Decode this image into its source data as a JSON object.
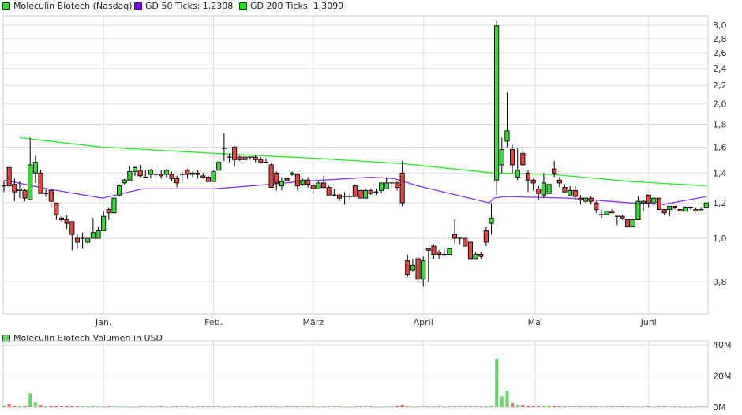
{
  "legend": {
    "price": "Moleculin Biotech (Nasdaq)",
    "gd50": "GD 50 Ticks: 1,2308",
    "gd200": "GD 200 Ticks: 1,3099",
    "volume": "Moleculin Biotech Volumen in USD"
  },
  "colors": {
    "up": "#33dd33",
    "down": "#e84444",
    "gd50": "#8c30ff",
    "gd200": "#22ee22",
    "vol_up": "#66d866",
    "vol_down": "#e06a6a",
    "grid": "#dddddd"
  },
  "chart_data": [
    {
      "type": "candlestick",
      "yscale": "log",
      "ylim": [
        0.7,
        3.15
      ],
      "yticks": [
        {
          "v": 0.8,
          "label": "0,8"
        },
        {
          "v": 1.0,
          "label": "1,0"
        },
        {
          "v": 1.2,
          "label": "1,2"
        },
        {
          "v": 1.4,
          "label": "1,4"
        },
        {
          "v": 1.6,
          "label": "1,6"
        },
        {
          "v": 1.8,
          "label": "1,8"
        },
        {
          "v": 2.0,
          "label": "2,0"
        },
        {
          "v": 2.2,
          "label": "2,2"
        },
        {
          "v": 2.4,
          "label": "2,4"
        },
        {
          "v": 2.6,
          "label": "2,6"
        },
        {
          "v": 2.8,
          "label": "2,8"
        },
        {
          "v": 3.0,
          "label": "3,0"
        }
      ],
      "month_ticks": [
        {
          "label": "Jan.",
          "index": 19
        },
        {
          "label": "Feb.",
          "index": 40
        },
        {
          "label": "März",
          "index": 59
        },
        {
          "label": "April",
          "index": 80
        },
        {
          "label": "Mai",
          "index": 101.4
        },
        {
          "label": "Juni",
          "index": 123
        }
      ],
      "grid": true,
      "ohlc_order": [
        "open",
        "high",
        "low",
        "close"
      ],
      "ohlc": [
        [
          1.31,
          1.34,
          1.27,
          1.31
        ],
        [
          1.44,
          1.46,
          1.27,
          1.31
        ],
        [
          1.32,
          1.36,
          1.21,
          1.27
        ],
        [
          1.28,
          1.34,
          1.23,
          1.29
        ],
        [
          1.28,
          1.29,
          1.21,
          1.23
        ],
        [
          1.22,
          1.68,
          1.22,
          1.46
        ],
        [
          1.4,
          1.53,
          1.33,
          1.48
        ],
        [
          1.4,
          1.42,
          1.26,
          1.26
        ],
        [
          1.26,
          1.29,
          1.24,
          1.26
        ],
        [
          1.28,
          1.28,
          1.17,
          1.21
        ],
        [
          1.2,
          1.2,
          1.1,
          1.13
        ],
        [
          1.11,
          1.12,
          1.09,
          1.1
        ],
        [
          1.1,
          1.13,
          1.05,
          1.08
        ],
        [
          1.09,
          1.09,
          0.94,
          1.02
        ],
        [
          1.0,
          1.02,
          0.95,
          0.98
        ],
        [
          1.0,
          1.03,
          0.95,
          1.0
        ],
        [
          0.98,
          1.0,
          0.97,
          1.0
        ],
        [
          1.0,
          1.11,
          1.0,
          1.03
        ],
        [
          1.0,
          1.06,
          1.0,
          1.04
        ],
        [
          1.04,
          1.15,
          1.04,
          1.12
        ],
        [
          1.16,
          1.17,
          1.1,
          1.14
        ],
        [
          1.14,
          1.34,
          1.14,
          1.23
        ],
        [
          1.25,
          1.32,
          1.24,
          1.31
        ],
        [
          1.33,
          1.36,
          1.32,
          1.35
        ],
        [
          1.35,
          1.45,
          1.35,
          1.41
        ],
        [
          1.41,
          1.45,
          1.38,
          1.44
        ],
        [
          1.42,
          1.46,
          1.37,
          1.38
        ],
        [
          1.37,
          1.42,
          1.37,
          1.37
        ],
        [
          1.39,
          1.43,
          1.36,
          1.42
        ],
        [
          1.39,
          1.43,
          1.37,
          1.39
        ],
        [
          1.39,
          1.42,
          1.36,
          1.38
        ],
        [
          1.39,
          1.43,
          1.37,
          1.42
        ],
        [
          1.39,
          1.41,
          1.34,
          1.36
        ],
        [
          1.36,
          1.38,
          1.3,
          1.33
        ],
        [
          1.39,
          1.41,
          1.33,
          1.39
        ],
        [
          1.42,
          1.43,
          1.36,
          1.39
        ],
        [
          1.39,
          1.41,
          1.37,
          1.4
        ],
        [
          1.4,
          1.42,
          1.36,
          1.39
        ],
        [
          1.38,
          1.4,
          1.36,
          1.37
        ],
        [
          1.37,
          1.38,
          1.34,
          1.34
        ],
        [
          1.34,
          1.42,
          1.34,
          1.41
        ],
        [
          1.42,
          1.49,
          1.42,
          1.48
        ],
        [
          1.59,
          1.72,
          1.49,
          1.59
        ],
        [
          1.52,
          1.55,
          1.48,
          1.52
        ],
        [
          1.6,
          1.61,
          1.45,
          1.5
        ],
        [
          1.52,
          1.53,
          1.49,
          1.5
        ],
        [
          1.52,
          1.53,
          1.48,
          1.5
        ],
        [
          1.52,
          1.52,
          1.5,
          1.52
        ],
        [
          1.52,
          1.54,
          1.48,
          1.5
        ],
        [
          1.5,
          1.52,
          1.47,
          1.48
        ],
        [
          1.48,
          1.51,
          1.48,
          1.48
        ],
        [
          1.46,
          1.47,
          1.3,
          1.3
        ],
        [
          1.4,
          1.41,
          1.28,
          1.33
        ],
        [
          1.31,
          1.37,
          1.28,
          1.34
        ],
        [
          1.36,
          1.38,
          1.34,
          1.35
        ],
        [
          1.39,
          1.41,
          1.38,
          1.4
        ],
        [
          1.39,
          1.4,
          1.28,
          1.31
        ],
        [
          1.32,
          1.36,
          1.31,
          1.35
        ],
        [
          1.35,
          1.37,
          1.3,
          1.32
        ],
        [
          1.31,
          1.33,
          1.26,
          1.29
        ],
        [
          1.29,
          1.34,
          1.29,
          1.33
        ],
        [
          1.33,
          1.38,
          1.29,
          1.3
        ],
        [
          1.3,
          1.31,
          1.25,
          1.25
        ],
        [
          1.25,
          1.29,
          1.24,
          1.25
        ],
        [
          1.25,
          1.26,
          1.21,
          1.23
        ],
        [
          1.24,
          1.27,
          1.19,
          1.24
        ],
        [
          1.24,
          1.26,
          1.22,
          1.24
        ],
        [
          1.31,
          1.32,
          1.24,
          1.24
        ],
        [
          1.28,
          1.28,
          1.23,
          1.23
        ],
        [
          1.23,
          1.29,
          1.23,
          1.28
        ],
        [
          1.28,
          1.29,
          1.25,
          1.26
        ],
        [
          1.27,
          1.29,
          1.25,
          1.27
        ],
        [
          1.28,
          1.33,
          1.26,
          1.33
        ],
        [
          1.29,
          1.37,
          1.29,
          1.33
        ],
        [
          1.33,
          1.35,
          1.3,
          1.33
        ],
        [
          1.33,
          1.34,
          1.28,
          1.3
        ],
        [
          1.4,
          1.49,
          1.18,
          1.2
        ],
        [
          0.89,
          0.92,
          0.82,
          0.83
        ],
        [
          0.85,
          0.9,
          0.84,
          0.87
        ],
        [
          0.9,
          0.91,
          0.8,
          0.81
        ],
        [
          0.81,
          0.91,
          0.78,
          0.89
        ],
        [
          0.95,
          0.95,
          0.8,
          0.94
        ],
        [
          0.96,
          0.97,
          0.9,
          0.92
        ],
        [
          0.93,
          0.94,
          0.9,
          0.92
        ],
        [
          0.92,
          0.95,
          0.91,
          0.92
        ],
        [
          0.92,
          0.95,
          0.92,
          0.95
        ],
        [
          1.02,
          1.1,
          0.97,
          1.0
        ],
        [
          1.0,
          1.0,
          0.97,
          1.0
        ],
        [
          1.0,
          1.0,
          0.96,
          0.96
        ],
        [
          0.98,
          0.98,
          0.9,
          0.9
        ],
        [
          0.9,
          0.93,
          0.9,
          0.92
        ],
        [
          0.92,
          0.93,
          0.9,
          0.91
        ],
        [
          1.04,
          1.06,
          0.96,
          0.98
        ],
        [
          1.08,
          1.2,
          1.02,
          1.11
        ],
        [
          1.35,
          3.08,
          1.25,
          2.99
        ],
        [
          1.46,
          1.68,
          1.4,
          1.58
        ],
        [
          1.65,
          2.12,
          1.6,
          1.74
        ],
        [
          1.58,
          1.62,
          1.4,
          1.46
        ],
        [
          1.37,
          1.59,
          1.35,
          1.42
        ],
        [
          1.55,
          1.6,
          1.44,
          1.46
        ],
        [
          1.4,
          1.42,
          1.27,
          1.35
        ],
        [
          1.35,
          1.36,
          1.28,
          1.33
        ],
        [
          1.29,
          1.31,
          1.22,
          1.26
        ],
        [
          1.25,
          1.4,
          1.23,
          1.33
        ],
        [
          1.26,
          1.35,
          1.26,
          1.32
        ],
        [
          1.43,
          1.49,
          1.37,
          1.4
        ],
        [
          1.35,
          1.37,
          1.3,
          1.33
        ],
        [
          1.3,
          1.32,
          1.27,
          1.27
        ],
        [
          1.25,
          1.31,
          1.25,
          1.28
        ],
        [
          1.28,
          1.31,
          1.22,
          1.24
        ],
        [
          1.23,
          1.25,
          1.19,
          1.22
        ],
        [
          1.21,
          1.23,
          1.2,
          1.23
        ],
        [
          1.23,
          1.24,
          1.19,
          1.21
        ],
        [
          1.2,
          1.21,
          1.14,
          1.16
        ],
        [
          1.13,
          1.16,
          1.11,
          1.13
        ],
        [
          1.13,
          1.15,
          1.13,
          1.15
        ],
        [
          1.15,
          1.16,
          1.14,
          1.14
        ],
        [
          1.12,
          1.12,
          1.07,
          1.12
        ],
        [
          1.12,
          1.13,
          1.1,
          1.11
        ],
        [
          1.1,
          1.1,
          1.06,
          1.06
        ],
        [
          1.06,
          1.1,
          1.06,
          1.1
        ],
        [
          1.1,
          1.24,
          1.1,
          1.21
        ],
        [
          1.2,
          1.22,
          1.15,
          1.21
        ],
        [
          1.25,
          1.25,
          1.17,
          1.2
        ],
        [
          1.2,
          1.24,
          1.18,
          1.23
        ],
        [
          1.23,
          1.23,
          1.16,
          1.16
        ],
        [
          1.16,
          1.16,
          1.13,
          1.14
        ],
        [
          1.16,
          1.18,
          1.12,
          1.18
        ],
        [
          1.18,
          1.18,
          1.16,
          1.17
        ],
        [
          1.16,
          1.16,
          1.14,
          1.15
        ],
        [
          1.15,
          1.18,
          1.15,
          1.17
        ],
        [
          1.17,
          1.18,
          1.16,
          1.17
        ],
        [
          1.16,
          1.17,
          1.15,
          1.15
        ],
        [
          1.15,
          1.17,
          1.15,
          1.16
        ],
        [
          1.17,
          1.2,
          1.17,
          1.2
        ]
      ],
      "series": [
        {
          "name": "GD 50 Ticks",
          "points": [
            [
              0,
              1.35
            ],
            [
              8.3,
              1.29
            ],
            [
              18.8,
              1.23
            ],
            [
              26.4,
              1.29
            ],
            [
              40,
              1.29
            ],
            [
              50.5,
              1.32
            ],
            [
              56.5,
              1.34
            ],
            [
              70,
              1.37
            ],
            [
              74.5,
              1.36
            ],
            [
              79,
              1.31
            ],
            [
              92.6,
              1.2
            ],
            [
              93.4,
              1.23
            ],
            [
              95.6,
              1.24
            ],
            [
              107.7,
              1.23
            ],
            [
              119.7,
              1.2
            ],
            [
              125.8,
              1.19
            ],
            [
              134,
              1.24
            ]
          ]
        },
        {
          "name": "GD 200 Ticks",
          "points": [
            [
              3,
              1.68
            ],
            [
              18.8,
              1.6
            ],
            [
              40,
              1.55
            ],
            [
              59.5,
              1.51
            ],
            [
              76,
              1.47
            ],
            [
              93.4,
              1.4
            ],
            [
              104.7,
              1.39
            ],
            [
              119.7,
              1.34
            ],
            [
              134,
              1.31
            ]
          ]
        }
      ]
    },
    {
      "type": "bar",
      "name": "Moleculin Biotech Volumen in USD",
      "unit": "M",
      "ylim": [
        0,
        40
      ],
      "yticks": [
        {
          "v": 0,
          "label": "0M"
        },
        {
          "v": 20,
          "label": "20M"
        },
        {
          "v": 40,
          "label": "40M"
        }
      ],
      "values": [
        1.0,
        2.0,
        1.0,
        1.0,
        0.5,
        9.0,
        3.0,
        1.5,
        0.5,
        1.0,
        1.0,
        0.6,
        1.0,
        1.0,
        0.6,
        0.5,
        0.5,
        1.0,
        0.5,
        0.4,
        0.4,
        0.4,
        0.4,
        0.4,
        0.4,
        0.4,
        0.4,
        0.4,
        0.4,
        0.4,
        0.4,
        0.4,
        0.4,
        0.4,
        0.4,
        0.4,
        0.4,
        0.4,
        0.4,
        0.4,
        0.4,
        0.6,
        0.4,
        0.4,
        0.4,
        0.4,
        0.4,
        0.4,
        0.4,
        0.4,
        0.4,
        0.4,
        0.4,
        0.4,
        0.4,
        0.4,
        0.4,
        0.4,
        0.4,
        0.4,
        0.4,
        0.4,
        0.4,
        0.4,
        0.4,
        0.4,
        0.4,
        0.4,
        0.4,
        0.4,
        0.4,
        0.4,
        0.4,
        0.4,
        0.4,
        1.0,
        1.5,
        0.4,
        0.4,
        0.4,
        0.4,
        0.4,
        0.4,
        0.4,
        0.4,
        0.4,
        0.4,
        0.4,
        0.4,
        0.4,
        0.6,
        0.4,
        0.4,
        1.0,
        31.0,
        7.0,
        10.5,
        2.5,
        1.5,
        1.5,
        1.0,
        1.0,
        1.0,
        1.0,
        1.2,
        1.0,
        0.5,
        0.8,
        0.4,
        0.4,
        0.4,
        0.4,
        0.4,
        0.4,
        0.4,
        0.4,
        0.4,
        0.4,
        0.4,
        0.4,
        0.4,
        0.4,
        0.4,
        0.6,
        0.4,
        0.4,
        0.4,
        0.4,
        0.4,
        0.4,
        0.4,
        0.4,
        0.4,
        0.4,
        0.4
      ]
    }
  ]
}
